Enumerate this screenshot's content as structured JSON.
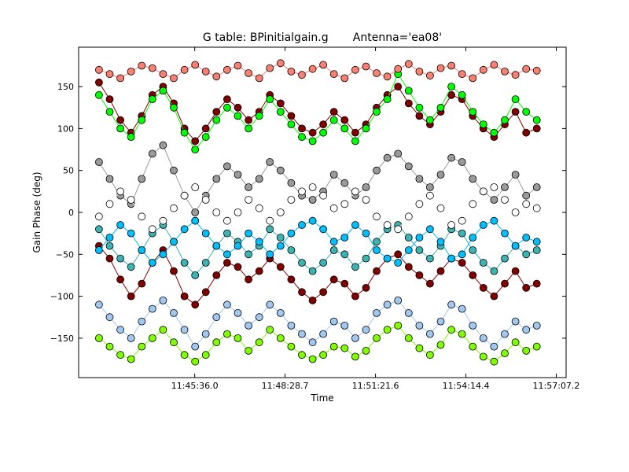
{
  "chart_data": {
    "type": "scatter",
    "title": "G table: BPinitialgain.g       Antenna='ea08'",
    "xlabel": "Time",
    "ylabel": "Gain Phase (deg)",
    "x_ticks": [
      "11:45:36.0",
      "11:48:28.7",
      "11:51:21.6",
      "11:54:14.4",
      "11:57:07.2"
    ],
    "x_tick_seconds": [
      42336.0,
      42508.7,
      42681.6,
      42854.4,
      43027.2
    ],
    "xlim_seconds": [
      42114.0,
      43046.0
    ],
    "ylim": [
      -197,
      197
    ],
    "y_ticks": [
      -150,
      -100,
      -50,
      0,
      50,
      100,
      150
    ],
    "grid": false,
    "x_range_seconds": [
      42153.0,
      42990.0
    ],
    "series": [
      {
        "color": "#800000",
        "values": [
          -40,
          -55,
          -80,
          -100,
          -85,
          -60,
          -45,
          -70,
          -100,
          -110,
          -95,
          -75,
          -60,
          -65,
          -80,
          -70,
          -55,
          -65,
          -80,
          -95,
          -105,
          -95,
          -80,
          -85,
          -100,
          -90,
          -70,
          -55,
          -50,
          -65,
          -75,
          -85,
          -70,
          -55,
          -60,
          -75,
          -90,
          -100,
          -85,
          -70,
          -90,
          -85
        ]
      },
      {
        "color": "#800000",
        "values": [
          155,
          135,
          110,
          95,
          115,
          140,
          150,
          130,
          100,
          85,
          100,
          120,
          135,
          125,
          110,
          120,
          140,
          130,
          115,
          100,
          95,
          105,
          120,
          110,
          95,
          105,
          125,
          140,
          150,
          130,
          115,
          105,
          120,
          140,
          135,
          115,
          100,
          90,
          105,
          120,
          95,
          100
        ]
      },
      {
        "color": "#00ff00",
        "values": [
          140,
          120,
          100,
          90,
          110,
          135,
          145,
          125,
          95,
          75,
          90,
          110,
          125,
          115,
          100,
          115,
          135,
          120,
          105,
          90,
          85,
          95,
          110,
          100,
          85,
          100,
          120,
          135,
          165,
          145,
          125,
          110,
          125,
          150,
          140,
          120,
          105,
          95,
          110,
          135,
          120,
          110
        ]
      },
      {
        "color": "#9a9a9a",
        "values": [
          60,
          40,
          20,
          10,
          40,
          70,
          80,
          50,
          20,
          0,
          20,
          40,
          55,
          45,
          30,
          40,
          60,
          50,
          35,
          20,
          15,
          25,
          45,
          35,
          20,
          30,
          50,
          65,
          70,
          55,
          40,
          30,
          45,
          65,
          60,
          40,
          25,
          15,
          30,
          45,
          20,
          30
        ]
      },
      {
        "color": "#3cb4b4",
        "values": [
          -20,
          -40,
          -55,
          -65,
          -45,
          -25,
          -15,
          -35,
          -60,
          -75,
          -60,
          -40,
          -25,
          -35,
          -50,
          -40,
          -20,
          -30,
          -45,
          -60,
          -70,
          -60,
          -45,
          -50,
          -65,
          -55,
          -35,
          -20,
          -15,
          -30,
          -45,
          -55,
          -40,
          -20,
          -25,
          -45,
          -60,
          -70,
          -55,
          -40,
          -50,
          -45
        ]
      },
      {
        "color": "#a0c8f0",
        "values": [
          -110,
          -125,
          -140,
          -150,
          -130,
          -115,
          -105,
          -120,
          -140,
          -160,
          -145,
          -125,
          -110,
          -120,
          -135,
          -125,
          -110,
          -120,
          -135,
          -145,
          -155,
          -145,
          -130,
          -135,
          -150,
          -140,
          -120,
          -110,
          -105,
          -120,
          -135,
          -145,
          -130,
          -110,
          -115,
          -135,
          -150,
          -160,
          -145,
          -130,
          -140,
          -135
        ]
      },
      {
        "color": "#7fff00",
        "values": [
          -150,
          -160,
          -170,
          -175,
          -160,
          -150,
          -140,
          -155,
          -170,
          -178,
          -170,
          -155,
          -145,
          -150,
          -165,
          -155,
          -140,
          -150,
          -160,
          -170,
          -175,
          -170,
          -160,
          -162,
          -172,
          -165,
          -150,
          -140,
          -135,
          -150,
          -162,
          -170,
          -158,
          -140,
          -145,
          -160,
          -172,
          -178,
          -168,
          -155,
          -165,
          -160
        ]
      },
      {
        "color": "#fa8072",
        "values": [
          170,
          165,
          160,
          168,
          175,
          172,
          165,
          160,
          170,
          176,
          168,
          162,
          170,
          175,
          166,
          160,
          172,
          178,
          168,
          164,
          171,
          176,
          165,
          160,
          170,
          174,
          166,
          162,
          171,
          177,
          168,
          163,
          172,
          175,
          165,
          160,
          170,
          176,
          168,
          164,
          171,
          169
        ]
      },
      {
        "color": "#ffffff",
        "values": [
          -5,
          10,
          25,
          15,
          -5,
          -20,
          -10,
          5,
          20,
          30,
          15,
          0,
          -10,
          0,
          15,
          5,
          -10,
          0,
          15,
          25,
          30,
          20,
          5,
          10,
          25,
          15,
          -5,
          -15,
          -20,
          -5,
          10,
          20,
          5,
          -15,
          -10,
          10,
          25,
          30,
          15,
          0,
          10,
          5
        ]
      },
      {
        "color": "#00bfff",
        "values": [
          -45,
          -30,
          -15,
          -25,
          -45,
          -60,
          -50,
          -35,
          -20,
          -10,
          -25,
          -40,
          -50,
          -40,
          -25,
          -35,
          -50,
          -40,
          -25,
          -15,
          -10,
          -20,
          -35,
          -30,
          -15,
          -25,
          -45,
          -55,
          -60,
          -45,
          -30,
          -20,
          -35,
          -55,
          -50,
          -30,
          -15,
          -10,
          -25,
          -40,
          -30,
          -35
        ]
      }
    ]
  }
}
